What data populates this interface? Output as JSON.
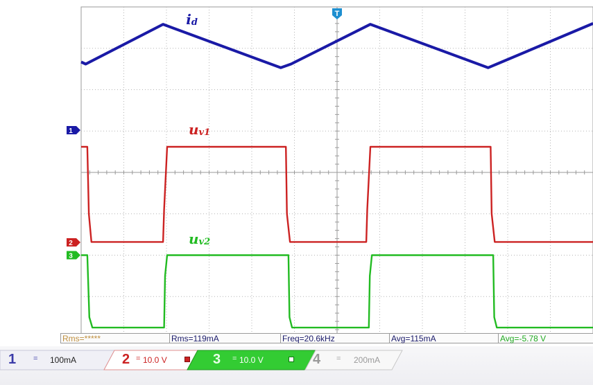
{
  "chart_data": {
    "type": "line",
    "title": "",
    "xlabel": "",
    "ylabel": "",
    "grid": true,
    "xlim": [
      0,
      10
    ],
    "ylim": [
      -4,
      4
    ],
    "series": [
      {
        "name": "id",
        "label_main": "i",
        "label_sub": "d",
        "color": "#1a1aa6",
        "x": [
          0,
          0.09,
          1.6,
          3.9,
          4.1,
          5.65,
          7.95,
          8.12,
          10
        ],
        "y": [
          2.67,
          2.62,
          3.58,
          2.53,
          2.62,
          3.58,
          2.53,
          2.62,
          3.6
        ]
      },
      {
        "name": "uv1",
        "label_main": "u",
        "label_sub": "v1",
        "color": "#cc2222",
        "x": [
          0,
          0.12,
          0.15,
          0.2,
          1.6,
          1.62,
          1.68,
          4.0,
          4.02,
          4.08,
          5.57,
          5.59,
          5.65,
          8.0,
          8.02,
          8.08,
          10
        ],
        "y": [
          0.62,
          0.62,
          -1.0,
          -1.68,
          -1.68,
          -0.9,
          0.62,
          0.62,
          -1.0,
          -1.68,
          -1.68,
          -0.9,
          0.62,
          0.62,
          -1.0,
          -1.68,
          -1.68
        ]
      },
      {
        "name": "uv2",
        "label_main": "u",
        "label_sub": "v2",
        "color": "#22bb22",
        "x": [
          0,
          0.12,
          0.16,
          0.22,
          1.62,
          1.64,
          1.68,
          4.05,
          4.07,
          4.12,
          5.62,
          5.64,
          5.68,
          8.05,
          8.07,
          8.12,
          10
        ],
        "y": [
          -2.0,
          -2.0,
          -3.5,
          -3.75,
          -3.75,
          -2.5,
          -2.0,
          -2.0,
          -3.5,
          -3.75,
          -3.75,
          -2.5,
          -2.0,
          -2.0,
          -3.5,
          -3.75,
          -3.75
        ]
      }
    ],
    "markers": [
      {
        "text": "1",
        "level": 1.02,
        "color": "#1a1aa6"
      },
      {
        "text": "2",
        "level": -1.69,
        "color": "#cc2222"
      },
      {
        "text": "3",
        "level": -2.0,
        "color": "#22bb22"
      }
    ],
    "trigger_marker": {
      "text": "T",
      "color": "#1e8fd0"
    }
  },
  "measurements": [
    {
      "text": "Rms=*****",
      "color": "#c09040"
    },
    {
      "text": "Rms=119mA",
      "color": "#1a1a6a"
    },
    {
      "text": "Freq=20.6kHz",
      "color": "#1a1a6a"
    },
    {
      "text": "Avg=115mA",
      "color": "#1a1a6a"
    },
    {
      "text": "Avg=-5.78 V",
      "color": "#22aa22"
    }
  ],
  "channels": [
    {
      "num": "1",
      "coupling": "=",
      "value": "100mA",
      "color": "#3a3aa8",
      "bg": "#ffffff"
    },
    {
      "num": "2",
      "coupling": "=",
      "value": "10.0 V",
      "color": "#cc2222",
      "bg": "#ffffff"
    },
    {
      "num": "3",
      "coupling": "=",
      "value": "10.0 V",
      "color": "#ffffff",
      "bg": "#33cc33"
    },
    {
      "num": "4",
      "coupling": "=",
      "value": "200mA",
      "color": "#9a9a9a",
      "bg": "#ffffff"
    }
  ]
}
